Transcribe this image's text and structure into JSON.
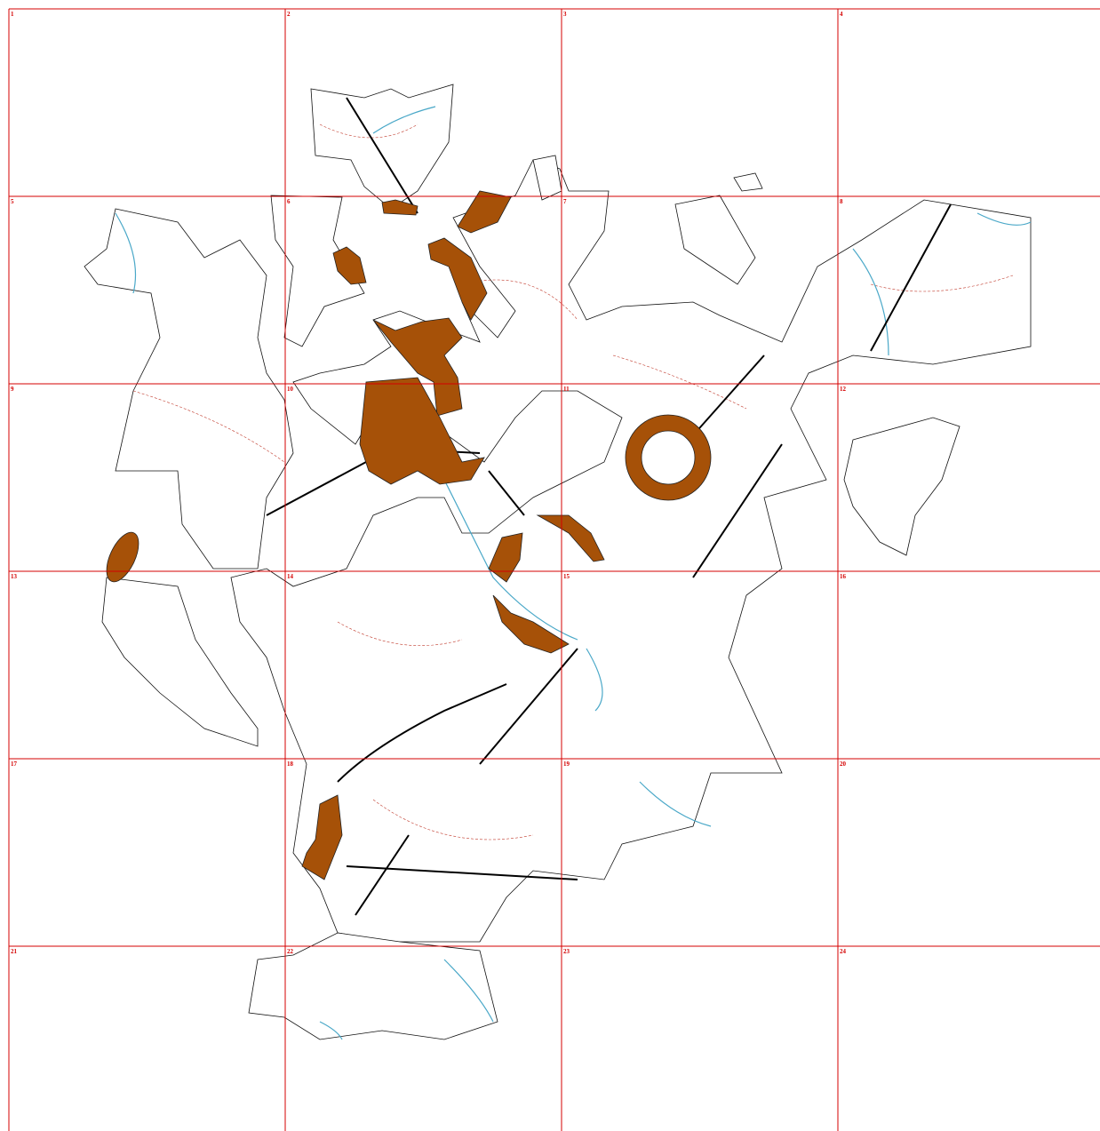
{
  "grid": {
    "cells": [
      "1",
      "2",
      "3",
      "4",
      "5",
      "6",
      "7",
      "8",
      "9",
      "10",
      "11",
      "12",
      "13",
      "14",
      "15",
      "16",
      "17",
      "18",
      "19",
      "20",
      "21",
      "22",
      "23",
      "24"
    ]
  }
}
